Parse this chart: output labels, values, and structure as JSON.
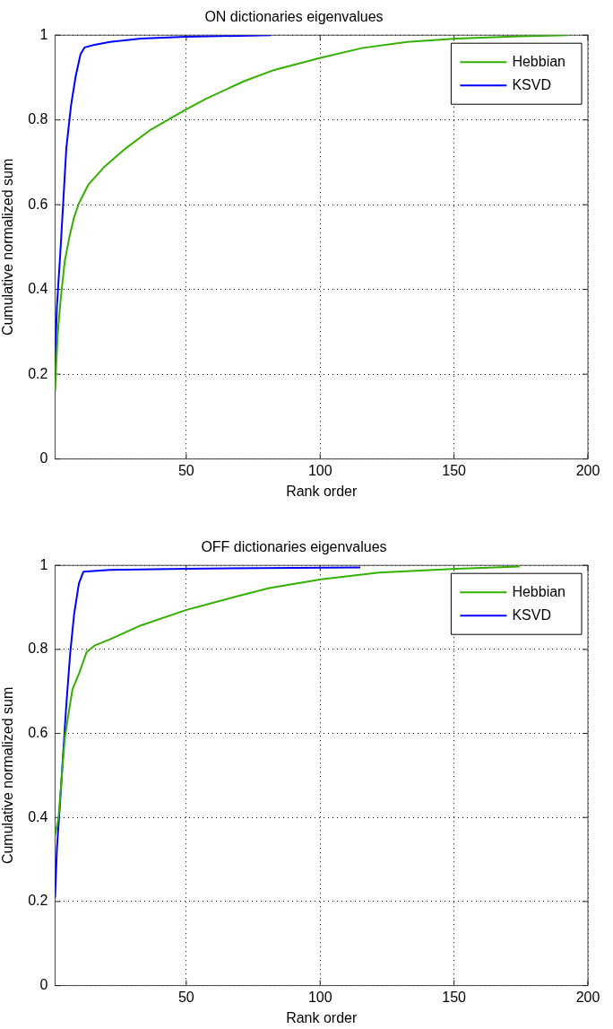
{
  "chart_data": [
    {
      "type": "line",
      "title": "ON dictionaries eigenvalues",
      "xlabel": "Rank order",
      "ylabel": "Cumulative normalized sum",
      "xlim": [
        1,
        200
      ],
      "xticks": [
        50,
        100,
        150,
        200
      ],
      "ylim": [
        0,
        1
      ],
      "yticks": [
        0,
        0.2,
        0.4,
        0.6,
        0.8,
        1
      ],
      "grid": true,
      "legend": "top right",
      "marker": "none",
      "line_style": "solid",
      "series": [
        {
          "name": "Hebbian",
          "color": "#33b000",
          "x": [
            1,
            1.9,
            3.1,
            4.6,
            6.4,
            8.1,
            9.9,
            13.4,
            19.2,
            27.4,
            36.7,
            50,
            57.7,
            71.8,
            82.9,
            100.4,
            116,
            132.5,
            151,
            174.5,
            192.6
          ],
          "values": [
            0.158,
            0.288,
            0.377,
            0.466,
            0.525,
            0.57,
            0.603,
            0.647,
            0.688,
            0.733,
            0.777,
            0.825,
            0.851,
            0.892,
            0.918,
            0.947,
            0.97,
            0.984,
            0.992,
            0.997,
            1
          ]
        },
        {
          "name": "KSVD",
          "color": "#0000ff",
          "x": [
            1,
            1.7,
            2.9,
            4,
            5.2,
            7,
            8.7,
            10.5,
            12,
            15.7,
            21.5,
            33,
            49.6,
            81.7
          ],
          "values": [
            0.225,
            0.362,
            0.48,
            0.6,
            0.733,
            0.836,
            0.903,
            0.955,
            0.971,
            0.977,
            0.984,
            0.992,
            0.996,
            1
          ]
        }
      ]
    },
    {
      "type": "line",
      "title": "OFF dictionaries eigenvalues",
      "xlabel": "Rank order",
      "ylabel": "Cumulative normalized sum",
      "xlim": [
        1,
        200
      ],
      "xticks": [
        50,
        100,
        150,
        200
      ],
      "ylim": [
        0,
        1
      ],
      "yticks": [
        0,
        0.2,
        0.4,
        0.6,
        0.8,
        1
      ],
      "grid": true,
      "legend": "top right",
      "marker": "none",
      "line_style": "solid",
      "series": [
        {
          "name": "Hebbian",
          "color": "#33b000",
          "x": [
            1,
            2.3,
            3.5,
            4.6,
            5.8,
            7.5,
            9.9,
            12.8,
            15.7,
            21.5,
            33,
            50,
            57.7,
            68.2,
            81,
            100.4,
            121.9,
            151,
            174.5
          ],
          "values": [
            0.357,
            0.4,
            0.498,
            0.587,
            0.638,
            0.705,
            0.742,
            0.794,
            0.809,
            0.824,
            0.857,
            0.894,
            0.907,
            0.925,
            0.946,
            0.967,
            0.983,
            0.992,
            0.997
          ]
        },
        {
          "name": "KSVD",
          "color": "#0000ff",
          "x": [
            1,
            1.7,
            2.9,
            4,
            5.2,
            6.6,
            8.1,
            9.9,
            11.6,
            21.5,
            49.6,
            115
          ],
          "values": [
            0.209,
            0.327,
            0.438,
            0.55,
            0.668,
            0.787,
            0.883,
            0.957,
            0.985,
            0.989,
            0.992,
            0.995
          ]
        }
      ]
    }
  ]
}
